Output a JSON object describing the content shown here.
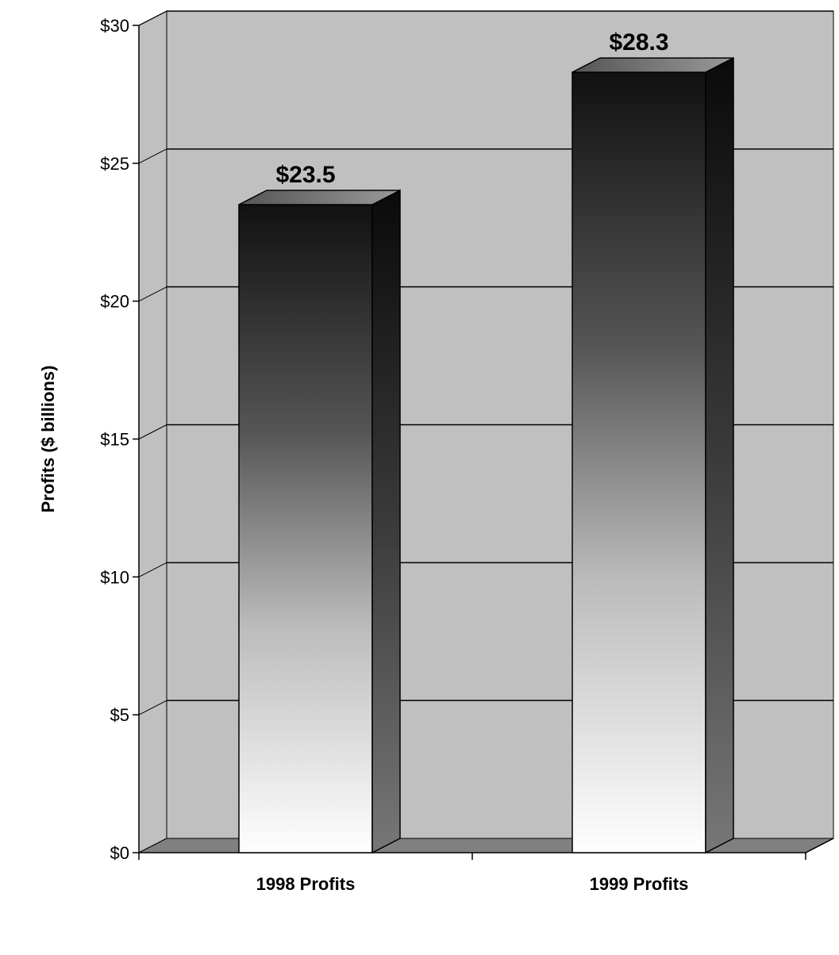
{
  "chart_data": {
    "type": "bar",
    "categories": [
      "1998 Profits",
      "1999 Profits"
    ],
    "values": [
      23.5,
      28.3
    ],
    "data_labels": [
      "$23.5",
      "$28.3"
    ],
    "title": "",
    "xlabel": "",
    "ylabel": "Profits ($ billions)",
    "ylim": [
      0,
      30
    ],
    "yticks": [
      0,
      5,
      10,
      15,
      20,
      25,
      30
    ],
    "ytick_labels": [
      "$0",
      "$5",
      "$10",
      "$15",
      "$20",
      "$25",
      "$30"
    ],
    "grid": true,
    "legend": "none",
    "style": "3d-column",
    "colors": {
      "wall": "#c0c0c0",
      "floor": "#808080",
      "bar_top_gradient": "#111111",
      "bar_bottom_gradient": "#ffffff",
      "bar_side": "#1a1a1a",
      "gridline": "#000000"
    }
  }
}
